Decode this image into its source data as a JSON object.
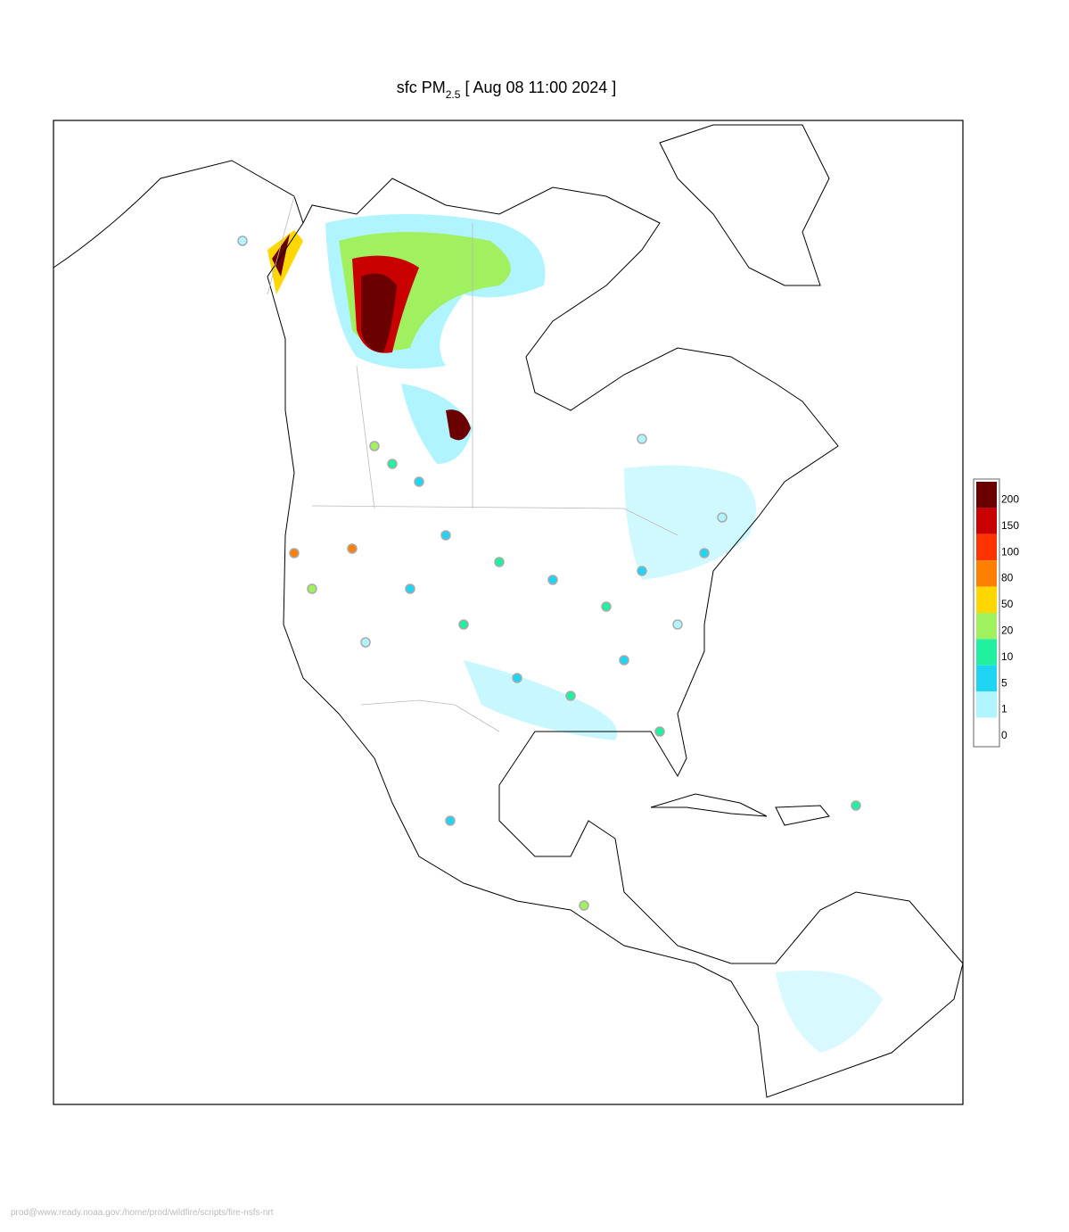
{
  "title": {
    "prefix": "sfc PM",
    "subscript": "2.5",
    "suffix": "[ Aug 08 11:00 2024 ]"
  },
  "legend": {
    "values": [
      200,
      150,
      100,
      80,
      50,
      20,
      10,
      5,
      1,
      0
    ],
    "colors": [
      "#6b0000",
      "#c80000",
      "#ff3300",
      "#ff8000",
      "#ffd700",
      "#a0f060",
      "#20f0a0",
      "#20d4f4",
      "#b0f4ff",
      "#ffffff"
    ]
  },
  "footer": "prod@www.ready.noaa.gov:/home/prod/wildfire/scripts/fire-nsfs-nrt"
}
